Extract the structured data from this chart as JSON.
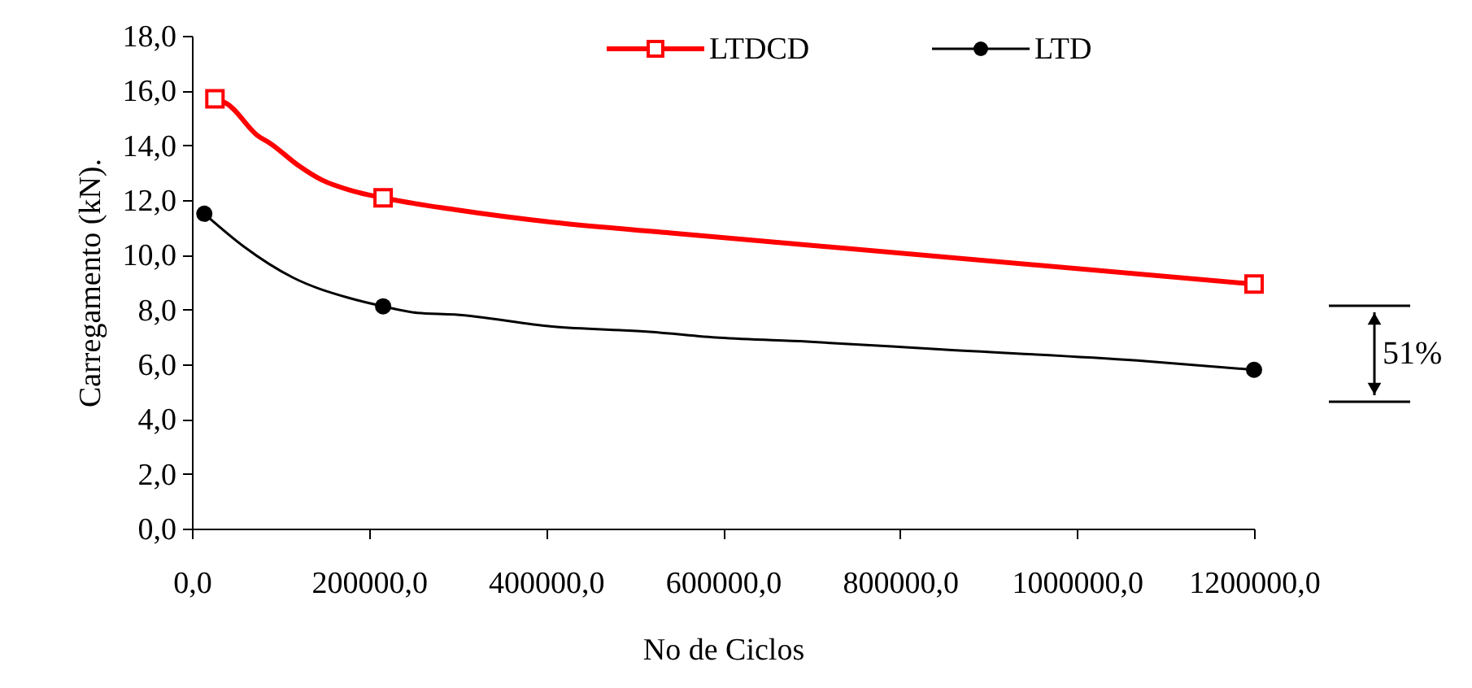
{
  "chart_data": {
    "type": "line",
    "xlabel": "No de Ciclos",
    "ylabel": "Carregamento (kN).",
    "xlim": [
      0,
      1200000
    ],
    "xticks": [
      {
        "value": 0,
        "label": "0,0"
      },
      {
        "value": 200000,
        "label": "200000,0"
      },
      {
        "value": 400000,
        "label": "400000,0"
      },
      {
        "value": 600000,
        "label": "600000,0"
      },
      {
        "value": 800000,
        "label": "800000,0"
      },
      {
        "value": 1000000,
        "label": "1000000,0"
      },
      {
        "value": 1200000,
        "label": "1200000,0"
      }
    ],
    "ylim": [
      0,
      18
    ],
    "yticks": [
      {
        "value": 0,
        "label": "0,0"
      },
      {
        "value": 2,
        "label": "2,0"
      },
      {
        "value": 4,
        "label": "4,0"
      },
      {
        "value": 6,
        "label": "6,0"
      },
      {
        "value": 8,
        "label": "8,0"
      },
      {
        "value": 10,
        "label": "10,0"
      },
      {
        "value": 12,
        "label": "12,0"
      },
      {
        "value": 14,
        "label": "14,0"
      },
      {
        "value": 16,
        "label": "16,0"
      },
      {
        "value": 18,
        "label": "18,0"
      }
    ],
    "grid": false,
    "legend": "top",
    "line_style": "solid",
    "series": [
      {
        "name": "LTDCD",
        "color": "#ff0000",
        "marker": "none",
        "x": [
          26000,
          40400,
          74000,
          89000,
          120000,
          147000,
          181000,
          216000,
          297000,
          407000,
          541000,
          695000,
          1200000
        ],
        "values": [
          15.7,
          15.5,
          14.36,
          14.06,
          13.27,
          12.73,
          12.34,
          12.08,
          11.65,
          11.19,
          10.8,
          10.36,
          8.93
        ]
      },
      {
        "name": "LTD",
        "color": "#000000",
        "marker": "none",
        "x": [
          14000,
          58700,
          114000,
          178000,
          216000,
          254500,
          297000,
          407000,
          517000,
          596000,
          695000,
          848000,
          1068000,
          1200000
        ],
        "values": [
          11.5,
          10.3,
          9.17,
          8.42,
          8.12,
          7.88,
          7.82,
          7.38,
          7.19,
          6.97,
          6.83,
          6.54,
          6.14,
          5.8
        ]
      },
      {
        "type": "scatter",
        "color": "#ff0000",
        "marker": "square",
        "x": [
          26000,
          216000,
          1200000
        ],
        "values": [
          15.7,
          12.08,
          8.93
        ]
      },
      {
        "type": "scatter",
        "color": "#000000",
        "marker": "circle",
        "x": [
          14000,
          216000,
          1200000
        ],
        "values": [
          11.5,
          8.12,
          5.8
        ]
      }
    ],
    "annotations": [
      "51%"
    ]
  }
}
